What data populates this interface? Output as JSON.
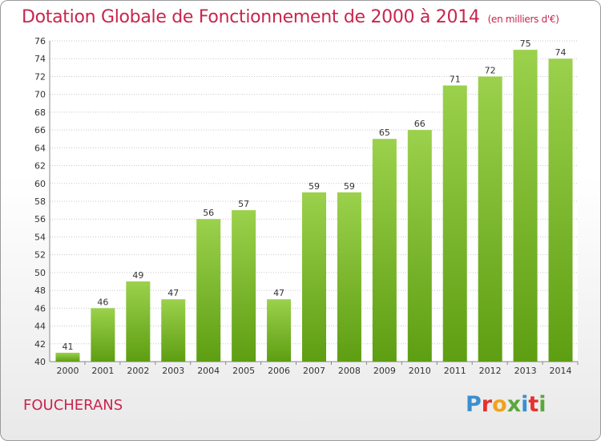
{
  "title": "Dotation Globale de Fonctionnement de 2000 à 2014",
  "unit": "(en milliers d'€)",
  "commune": "FOUCHERANS",
  "logo": {
    "letters": [
      "P",
      "r",
      "o",
      "x",
      "i",
      "t",
      "i"
    ]
  },
  "colors": {
    "bar_light": "#9bd14c",
    "bar_dark": "#5e9e12",
    "title": "#c8254e"
  },
  "chart_data": {
    "type": "bar",
    "title": "Dotation Globale de Fonctionnement de 2000 à 2014",
    "categories": [
      "2000",
      "2001",
      "2002",
      "2003",
      "2004",
      "2005",
      "2006",
      "2007",
      "2008",
      "2009",
      "2010",
      "2011",
      "2012",
      "2013",
      "2014"
    ],
    "values": [
      41,
      46,
      49,
      47,
      56,
      57,
      47,
      59,
      59,
      65,
      66,
      71,
      72,
      75,
      74
    ],
    "ylim": [
      40,
      76
    ],
    "yticks": [
      40,
      42,
      44,
      46,
      48,
      50,
      52,
      54,
      56,
      58,
      60,
      62,
      64,
      66,
      68,
      70,
      72,
      74,
      76
    ],
    "grid": true,
    "xlabel": "",
    "ylabel": ""
  }
}
